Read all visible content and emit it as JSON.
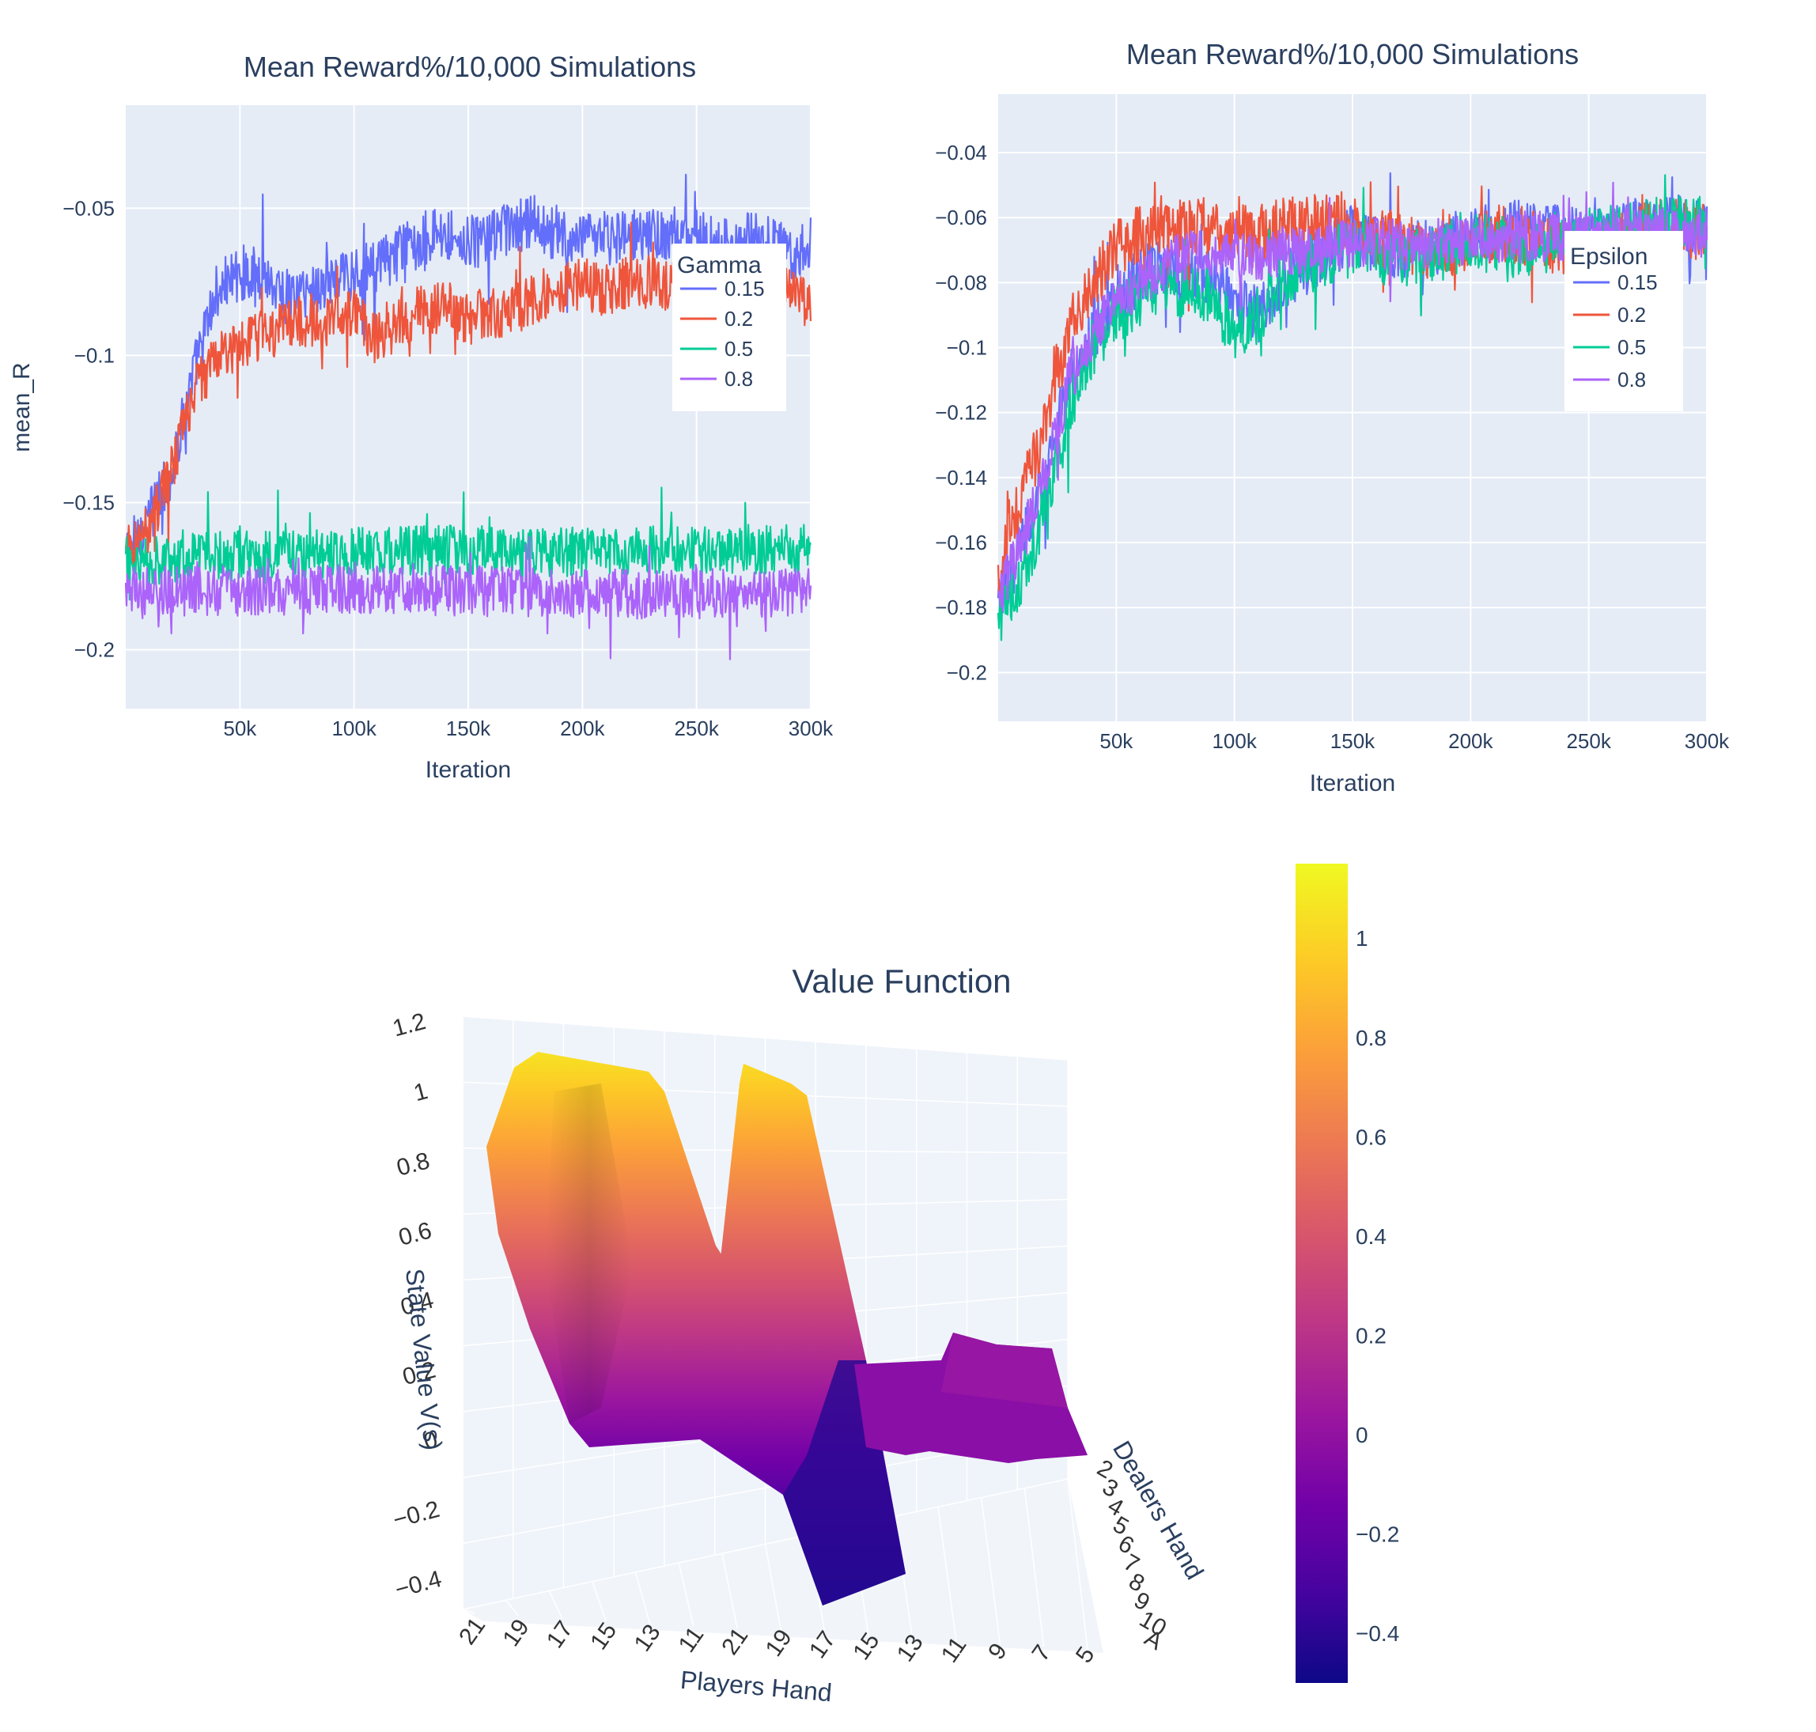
{
  "chart_data": [
    {
      "id": "gamma",
      "type": "line",
      "title": "Mean Reward%/10,000 Simulations",
      "xlabel": "Iteration",
      "ylabel": "mean_R",
      "xlim": [
        0,
        300000
      ],
      "ylim": [
        -0.22,
        -0.015
      ],
      "xticks": [
        50000,
        100000,
        150000,
        200000,
        250000,
        300000
      ],
      "xtick_labels": [
        "50k",
        "100k",
        "150k",
        "200k",
        "250k",
        "300k"
      ],
      "yticks": [
        -0.05,
        -0.1,
        -0.15,
        -0.2
      ],
      "ytick_labels": [
        "−0.05",
        "−0.1",
        "−0.15",
        "−0.2"
      ],
      "legend_title": "Gamma",
      "legend_position": "top-right",
      "series": [
        {
          "name": "0.15",
          "color": "#636efa",
          "values": [
            [
              0,
              -0.168
            ],
            [
              10000,
              -0.155
            ],
            [
              20000,
              -0.14
            ],
            [
              30000,
              -0.105
            ],
            [
              40000,
              -0.078
            ],
            [
              50000,
              -0.072
            ],
            [
              60000,
              -0.072
            ],
            [
              70000,
              -0.08
            ],
            [
              80000,
              -0.078
            ],
            [
              90000,
              -0.075
            ],
            [
              100000,
              -0.072
            ],
            [
              110000,
              -0.07
            ],
            [
              120000,
              -0.065
            ],
            [
              130000,
              -0.06
            ],
            [
              140000,
              -0.058
            ],
            [
              150000,
              -0.062
            ],
            [
              160000,
              -0.06
            ],
            [
              170000,
              -0.057
            ],
            [
              180000,
              -0.055
            ],
            [
              190000,
              -0.06
            ],
            [
              200000,
              -0.062
            ],
            [
              210000,
              -0.06
            ],
            [
              220000,
              -0.06
            ],
            [
              230000,
              -0.058
            ],
            [
              240000,
              -0.062
            ],
            [
              250000,
              -0.06
            ],
            [
              260000,
              -0.062
            ],
            [
              270000,
              -0.06
            ],
            [
              280000,
              -0.062
            ],
            [
              290000,
              -0.065
            ],
            [
              300000,
              -0.062
            ]
          ]
        },
        {
          "name": "0.2",
          "color": "#ef553b",
          "values": [
            [
              0,
              -0.168
            ],
            [
              10000,
              -0.158
            ],
            [
              20000,
              -0.14
            ],
            [
              30000,
              -0.112
            ],
            [
              40000,
              -0.1
            ],
            [
              50000,
              -0.097
            ],
            [
              60000,
              -0.093
            ],
            [
              70000,
              -0.09
            ],
            [
              80000,
              -0.088
            ],
            [
              90000,
              -0.088
            ],
            [
              100000,
              -0.085
            ],
            [
              110000,
              -0.095
            ],
            [
              120000,
              -0.088
            ],
            [
              130000,
              -0.085
            ],
            [
              140000,
              -0.083
            ],
            [
              150000,
              -0.088
            ],
            [
              160000,
              -0.085
            ],
            [
              170000,
              -0.085
            ],
            [
              180000,
              -0.08
            ],
            [
              190000,
              -0.078
            ],
            [
              200000,
              -0.075
            ],
            [
              210000,
              -0.078
            ],
            [
              220000,
              -0.075
            ],
            [
              230000,
              -0.075
            ],
            [
              240000,
              -0.077
            ],
            [
              250000,
              -0.075
            ],
            [
              260000,
              -0.075
            ],
            [
              270000,
              -0.073
            ],
            [
              280000,
              -0.075
            ],
            [
              290000,
              -0.075
            ],
            [
              300000,
              -0.085
            ]
          ]
        },
        {
          "name": "0.5",
          "color": "#00cc96",
          "values": [
            [
              0,
              -0.17
            ],
            [
              50000,
              -0.168
            ],
            [
              100000,
              -0.167
            ],
            [
              150000,
              -0.166
            ],
            [
              200000,
              -0.167
            ],
            [
              250000,
              -0.166
            ],
            [
              300000,
              -0.166
            ]
          ]
        },
        {
          "name": "0.8",
          "color": "#ab63fa",
          "values": [
            [
              0,
              -0.18
            ],
            [
              50000,
              -0.18
            ],
            [
              100000,
              -0.18
            ],
            [
              150000,
              -0.18
            ],
            [
              200000,
              -0.181
            ],
            [
              250000,
              -0.181
            ],
            [
              300000,
              -0.181
            ]
          ]
        }
      ]
    },
    {
      "id": "epsilon",
      "type": "line",
      "title": "Mean Reward%/10,000 Simulations",
      "xlabel": "Iteration",
      "ylabel": "",
      "xlim": [
        0,
        300000
      ],
      "ylim": [
        -0.215,
        -0.022
      ],
      "xticks": [
        50000,
        100000,
        150000,
        200000,
        250000,
        300000
      ],
      "xtick_labels": [
        "50k",
        "100k",
        "150k",
        "200k",
        "250k",
        "300k"
      ],
      "yticks": [
        -0.04,
        -0.06,
        -0.08,
        -0.1,
        -0.12,
        -0.14,
        -0.16,
        -0.18,
        -0.2
      ],
      "ytick_labels": [
        "−0.04",
        "−0.06",
        "−0.08",
        "−0.1",
        "−0.12",
        "−0.14",
        "−0.16",
        "−0.18",
        "−0.2"
      ],
      "legend_title": "Epsilon",
      "legend_position": "top-right",
      "series": [
        {
          "name": "0.15",
          "color": "#636efa",
          "values": [
            [
              0,
              -0.18
            ],
            [
              10000,
              -0.16
            ],
            [
              20000,
              -0.14
            ],
            [
              30000,
              -0.11
            ],
            [
              40000,
              -0.095
            ],
            [
              50000,
              -0.085
            ],
            [
              60000,
              -0.078
            ],
            [
              70000,
              -0.075
            ],
            [
              80000,
              -0.075
            ],
            [
              90000,
              -0.078
            ],
            [
              100000,
              -0.085
            ],
            [
              110000,
              -0.09
            ],
            [
              120000,
              -0.08
            ],
            [
              130000,
              -0.075
            ],
            [
              140000,
              -0.07
            ],
            [
              150000,
              -0.065
            ],
            [
              160000,
              -0.068
            ],
            [
              170000,
              -0.07
            ],
            [
              180000,
              -0.07
            ],
            [
              190000,
              -0.068
            ],
            [
              200000,
              -0.065
            ],
            [
              210000,
              -0.065
            ],
            [
              220000,
              -0.063
            ],
            [
              230000,
              -0.065
            ],
            [
              240000,
              -0.065
            ],
            [
              250000,
              -0.065
            ],
            [
              260000,
              -0.065
            ],
            [
              270000,
              -0.063
            ],
            [
              280000,
              -0.062
            ],
            [
              290000,
              -0.062
            ],
            [
              300000,
              -0.063
            ]
          ]
        },
        {
          "name": "0.2",
          "color": "#ef553b",
          "values": [
            [
              0,
              -0.17
            ],
            [
              10000,
              -0.145
            ],
            [
              20000,
              -0.125
            ],
            [
              30000,
              -0.095
            ],
            [
              40000,
              -0.08
            ],
            [
              50000,
              -0.07
            ],
            [
              60000,
              -0.065
            ],
            [
              70000,
              -0.062
            ],
            [
              80000,
              -0.062
            ],
            [
              90000,
              -0.063
            ],
            [
              100000,
              -0.065
            ],
            [
              110000,
              -0.065
            ],
            [
              120000,
              -0.063
            ],
            [
              130000,
              -0.062
            ],
            [
              140000,
              -0.06
            ],
            [
              150000,
              -0.062
            ],
            [
              160000,
              -0.065
            ],
            [
              170000,
              -0.068
            ],
            [
              180000,
              -0.07
            ],
            [
              190000,
              -0.07
            ],
            [
              200000,
              -0.068
            ],
            [
              210000,
              -0.065
            ],
            [
              220000,
              -0.065
            ],
            [
              230000,
              -0.068
            ],
            [
              240000,
              -0.07
            ],
            [
              250000,
              -0.07
            ],
            [
              260000,
              -0.068
            ],
            [
              270000,
              -0.065
            ],
            [
              280000,
              -0.063
            ],
            [
              290000,
              -0.063
            ],
            [
              300000,
              -0.065
            ]
          ]
        },
        {
          "name": "0.5",
          "color": "#00cc96",
          "values": [
            [
              0,
              -0.185
            ],
            [
              10000,
              -0.17
            ],
            [
              20000,
              -0.15
            ],
            [
              30000,
              -0.12
            ],
            [
              40000,
              -0.1
            ],
            [
              50000,
              -0.09
            ],
            [
              60000,
              -0.085
            ],
            [
              70000,
              -0.082
            ],
            [
              80000,
              -0.082
            ],
            [
              90000,
              -0.085
            ],
            [
              100000,
              -0.095
            ],
            [
              110000,
              -0.09
            ],
            [
              120000,
              -0.08
            ],
            [
              130000,
              -0.075
            ],
            [
              140000,
              -0.072
            ],
            [
              150000,
              -0.07
            ],
            [
              160000,
              -0.072
            ],
            [
              170000,
              -0.072
            ],
            [
              180000,
              -0.072
            ],
            [
              190000,
              -0.07
            ],
            [
              200000,
              -0.068
            ],
            [
              210000,
              -0.068
            ],
            [
              220000,
              -0.07
            ],
            [
              230000,
              -0.068
            ],
            [
              240000,
              -0.068
            ],
            [
              250000,
              -0.065
            ],
            [
              260000,
              -0.065
            ],
            [
              270000,
              -0.063
            ],
            [
              280000,
              -0.062
            ],
            [
              290000,
              -0.062
            ],
            [
              300000,
              -0.062
            ]
          ]
        },
        {
          "name": "0.8",
          "color": "#ab63fa",
          "values": [
            [
              0,
              -0.178
            ],
            [
              10000,
              -0.16
            ],
            [
              20000,
              -0.14
            ],
            [
              30000,
              -0.11
            ],
            [
              40000,
              -0.095
            ],
            [
              50000,
              -0.085
            ],
            [
              60000,
              -0.08
            ],
            [
              70000,
              -0.075
            ],
            [
              80000,
              -0.072
            ],
            [
              90000,
              -0.072
            ],
            [
              100000,
              -0.072
            ],
            [
              110000,
              -0.072
            ],
            [
              120000,
              -0.07
            ],
            [
              130000,
              -0.07
            ],
            [
              140000,
              -0.07
            ],
            [
              150000,
              -0.068
            ],
            [
              160000,
              -0.068
            ],
            [
              170000,
              -0.068
            ],
            [
              180000,
              -0.068
            ],
            [
              190000,
              -0.068
            ],
            [
              200000,
              -0.067
            ],
            [
              210000,
              -0.066
            ],
            [
              220000,
              -0.066
            ],
            [
              230000,
              -0.066
            ],
            [
              240000,
              -0.066
            ],
            [
              250000,
              -0.066
            ],
            [
              260000,
              -0.065
            ],
            [
              270000,
              -0.065
            ],
            [
              280000,
              -0.065
            ],
            [
              290000,
              -0.065
            ],
            [
              300000,
              -0.065
            ]
          ]
        }
      ]
    },
    {
      "id": "value-function",
      "type": "surface",
      "title": "Value Function",
      "xlabel": "Players Hand",
      "ylabel": "Dealers Hand",
      "zlabel": "State Value V(s)",
      "zticks": [
        "1.2",
        "1",
        "0.8",
        "0.6",
        "0.4",
        "0.2",
        "0",
        "−0.2",
        "−0.4"
      ],
      "players_hand_ticks": [
        "21",
        "19",
        "17",
        "15",
        "13",
        "11",
        "21",
        "19",
        "17",
        "15",
        "13",
        "11",
        "9",
        "7",
        "5"
      ],
      "dealers_hand_ticks": [
        "2",
        "3",
        "4",
        "5",
        "6",
        "7",
        "8",
        "9",
        "10",
        "A"
      ],
      "colorbar_range": [
        -0.5,
        1.15
      ],
      "colorbar_ticks": [
        1,
        0.8,
        0.6,
        0.4,
        0.2,
        0,
        -0.2,
        -0.4
      ],
      "colorbar_tick_labels": [
        "1",
        "0.8",
        "0.6",
        "0.4",
        "0.2",
        "0",
        "−0.2",
        "−0.4"
      ],
      "colorscale": [
        "#0d0887",
        "#46039f",
        "#7201a8",
        "#9c179e",
        "#bd3786",
        "#d8576b",
        "#ed7953",
        "#fb9f3a",
        "#fdca26",
        "#f0f921"
      ],
      "surface_profile": [
        1.05,
        1.1,
        0.95,
        0.3,
        0.05,
        0.05,
        1.1,
        0.6,
        -0.45,
        -0.3,
        0.0,
        0.05,
        0.05,
        0.08,
        0.05
      ]
    }
  ]
}
